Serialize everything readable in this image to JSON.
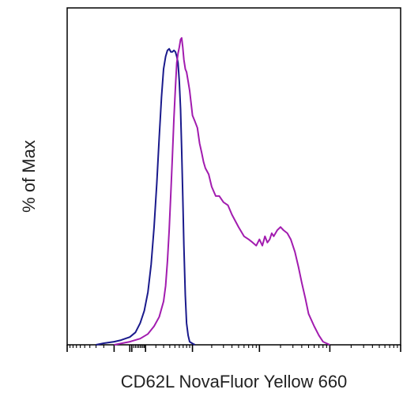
{
  "chart_data": {
    "type": "line",
    "title": "",
    "xlabel": "CD62L NovaFluor Yellow 660",
    "ylabel": "% of Max",
    "xscale": "log",
    "xlim": [
      -1000,
      1000000
    ],
    "ylim": [
      0,
      100
    ],
    "grid": false,
    "legend": "none",
    "colors": {
      "axis": "#000000",
      "blue": "#1a1a8c",
      "purple": "#a21caf"
    },
    "series": [
      {
        "color": "#1a1a8c",
        "x": [
          -300,
          -200,
          -100,
          -50,
          0,
          30,
          60,
          90,
          120,
          150,
          180,
          210,
          240,
          270,
          300,
          330,
          360,
          390,
          420,
          450,
          480,
          510,
          540,
          570,
          600,
          630,
          660,
          690,
          720,
          760,
          800,
          850,
          900,
          1000,
          1100
        ],
        "y": [
          0,
          0.5,
          1,
          1.5,
          2.5,
          4,
          7,
          11,
          17,
          26,
          38,
          52,
          67,
          80,
          89,
          93,
          95,
          95.5,
          94.5,
          94.5,
          95,
          94.5,
          93,
          91,
          85,
          76,
          63,
          48,
          32,
          16,
          7,
          3,
          1,
          0.4,
          0
        ]
      },
      {
        "color": "#a21caf",
        "x": [
          -100,
          0,
          60,
          120,
          180,
          240,
          300,
          330,
          360,
          390,
          420,
          450,
          480,
          510,
          540,
          570,
          600,
          630,
          660,
          690,
          720,
          760,
          800,
          850,
          900,
          950,
          1000,
          1100,
          1200,
          1300,
          1400,
          1500,
          1600,
          1800,
          2000,
          2300,
          2600,
          3000,
          3500,
          4000,
          5000,
          6000,
          7000,
          8000,
          9000,
          10000,
          11000,
          12000,
          13000,
          14000,
          15000,
          16000,
          18000,
          20000,
          22000,
          25000,
          28000,
          32000,
          36000,
          40000,
          45000,
          50000,
          60000,
          70000,
          80000,
          100000
        ],
        "y": [
          0,
          1,
          2,
          3.5,
          6,
          9,
          14,
          19,
          27,
          37,
          49,
          61,
          73,
          83,
          91,
          94,
          96,
          98.5,
          99,
          96,
          92,
          89,
          88,
          85,
          82,
          78,
          74,
          72,
          70,
          65,
          62,
          59,
          57,
          55,
          51,
          48,
          48,
          46,
          45,
          42,
          38,
          35,
          34,
          33,
          32,
          34,
          32,
          35,
          33,
          34,
          36,
          35,
          37,
          38,
          37,
          36,
          34,
          30,
          25,
          20,
          15,
          10,
          6,
          3,
          1,
          0
        ]
      }
    ]
  }
}
